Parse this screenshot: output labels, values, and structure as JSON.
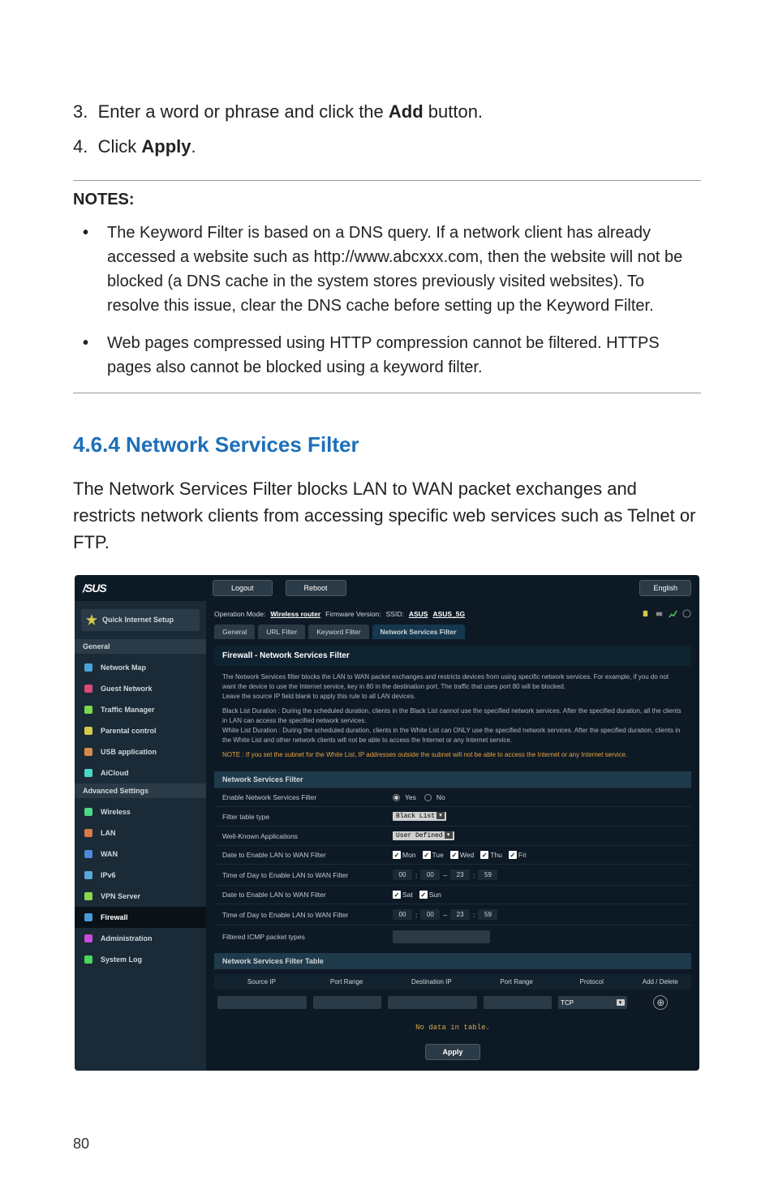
{
  "steps": [
    {
      "num": "3.",
      "pre": "Enter a word or phrase and click the ",
      "bold": "Add",
      "post": " button."
    },
    {
      "num": "4.",
      "pre": "Click ",
      "bold": "Apply",
      "post": "."
    }
  ],
  "notes_header": "NOTES:",
  "notes": [
    "The Keyword Filter is based on a DNS query. If a network client has already accessed a website such as http://www.abcxxx.com, then the website will not be blocked (a DNS cache in the system stores previously visited websites). To resolve this issue, clear the DNS cache before setting up the Keyword Filter.",
    "Web pages compressed using HTTP compression cannot be filtered. HTTPS pages also cannot be blocked using a keyword filter."
  ],
  "section_heading": "4.6.4 Network Services Filter",
  "section_body": "The Network Services Filter blocks LAN to WAN packet exchanges and restricts network clients from accessing specific web services such as Telnet or FTP.",
  "router": {
    "brand": "/SUS",
    "top_buttons": {
      "logout": "Logout",
      "reboot": "Reboot",
      "lang": "English"
    },
    "opmode": {
      "label": "Operation Mode:",
      "value": "Wireless router",
      "fw_label": "Firmware Version:",
      "ssid_label": "SSID:",
      "ssid1": "ASUS",
      "ssid2": "ASUS_5G"
    },
    "sidebar": {
      "qis": "Quick Internet Setup",
      "general_header": "General",
      "general_items": [
        {
          "label": "Network Map",
          "color": "#4aa3d8"
        },
        {
          "label": "Guest Network",
          "color": "#d84a7a"
        },
        {
          "label": "Traffic Manager",
          "color": "#7ad84a"
        },
        {
          "label": "Parental control",
          "color": "#d8c84a"
        },
        {
          "label": "USB application",
          "color": "#d88a4a"
        },
        {
          "label": "AiCloud",
          "color": "#4ad8c8"
        }
      ],
      "advanced_header": "Advanced Settings",
      "advanced_items": [
        {
          "label": "Wireless",
          "color": "#4ad88a"
        },
        {
          "label": "LAN",
          "color": "#d87a4a"
        },
        {
          "label": "WAN",
          "color": "#4a8ad8"
        },
        {
          "label": "IPv6",
          "color": "#5aa8d8"
        },
        {
          "label": "VPN Server",
          "color": "#8ad84a"
        },
        {
          "label": "Firewall",
          "color": "#4a9ad8",
          "active": true
        },
        {
          "label": "Administration",
          "color": "#c84ad8"
        },
        {
          "label": "System Log",
          "color": "#4ad85a"
        }
      ]
    },
    "tabs": [
      "General",
      "URL Filter",
      "Keyword Filter",
      "Network Services Filter"
    ],
    "active_tab": 3,
    "panel_title": "Firewall - Network Services Filter",
    "desc": {
      "p1": "The Network Services filter blocks the LAN to WAN packet exchanges and restricts devices from using specific network services. For example, if you do not want the device to use the Internet service, key in 80 in the destination port. The traffic that uses port 80 will be blocked.",
      "p2": "Leave the source IP field blank to apply this rule to all LAN devices.",
      "p3a": "Black List Duration :",
      "p3b": " During the scheduled duration, clients in the Black List cannot use the specified network services. After the specified duration, all the clients in LAN can access the specified network services.",
      "p4a": "White List Duration :",
      "p4b": " During the scheduled duration, clients in the White List can ONLY use the specified network services. After the specified duration, clients in the White List and other network clients will not be able to access the Internet or any Internet service.",
      "note_a": "NOTE :",
      "note_b": " If you set the subnet for the White List, IP addresses outside the subnet will not be able to access the Internet or any Internet service."
    },
    "filter_header": "Network Services Filter",
    "form": {
      "enable_label": "Enable Network Services Filter",
      "yes": "Yes",
      "no": "No",
      "type_label": "Filter table type",
      "type_value": "Black List",
      "apps_label": "Well-Known Applications",
      "apps_value": "User Defined",
      "date1_label": "Date to Enable LAN to WAN Filter",
      "days1": [
        "Mon",
        "Tue",
        "Wed",
        "Thu",
        "Fri"
      ],
      "time1_label": "Time of Day to Enable LAN to WAN Filter",
      "time1": [
        "00",
        "00",
        "23",
        "59"
      ],
      "date2_label": "Date to Enable LAN to WAN Filter",
      "days2": [
        "Sat",
        "Sun"
      ],
      "time2_label": "Time of Day to Enable LAN to WAN Filter",
      "time2": [
        "00",
        "00",
        "23",
        "59"
      ],
      "icmp_label": "Filtered ICMP packet types"
    },
    "table": {
      "header": "Network Services Filter Table",
      "cols": [
        "Source IP",
        "Port Range",
        "Destination IP",
        "Port Range",
        "Protocol",
        "Add / Delete"
      ],
      "proto": "TCP",
      "nodata": "No data in table."
    },
    "apply": "Apply"
  },
  "page_number": "80"
}
